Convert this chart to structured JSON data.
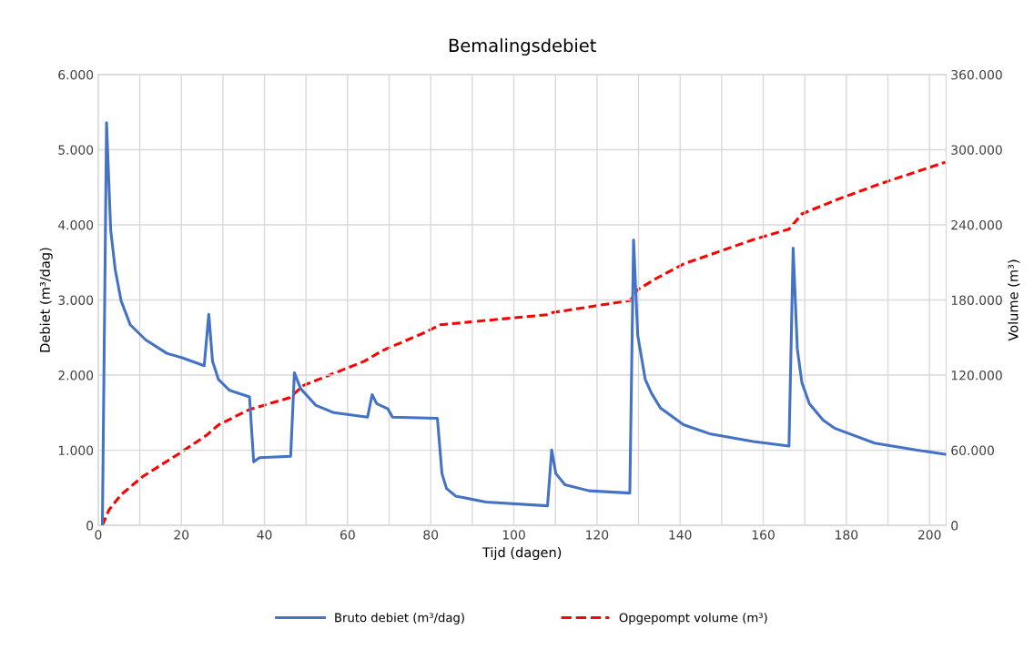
{
  "chart_data": {
    "type": "line",
    "title": "Bemalingsdebiet",
    "xlabel": "Tijd (dagen)",
    "ylabel": "Debiet (m³/dag)",
    "y2label": "Volume (m³)",
    "xlim": [
      0,
      204
    ],
    "xticks": [
      0,
      {
        "value": 10,
        "label": null
      },
      20,
      {
        "value": 30,
        "label": null
      },
      40,
      {
        "value": 50,
        "label": null
      },
      60,
      {
        "value": 70,
        "label": null
      },
      80,
      {
        "value": 90,
        "label": null
      },
      100,
      {
        "value": 110,
        "label": null
      },
      120,
      {
        "value": 130,
        "label": null
      },
      140,
      {
        "value": 150,
        "label": null
      },
      160,
      {
        "value": 170,
        "label": null
      },
      180,
      {
        "value": 190,
        "label": null
      },
      200
    ],
    "ylim": [
      0,
      6000
    ],
    "yticks": [
      0,
      {
        "value": 1000,
        "label": "1.000"
      },
      {
        "value": 2000,
        "label": "2.000"
      },
      {
        "value": 3000,
        "label": "3.000"
      },
      {
        "value": 4000,
        "label": "4.000"
      },
      {
        "value": 5000,
        "label": "5.000"
      },
      {
        "value": 6000,
        "label": "6.000"
      }
    ],
    "y2lim": [
      0,
      360000
    ],
    "y2ticks": [
      0,
      {
        "value": 60000,
        "label": "60.000"
      },
      {
        "value": 120000,
        "label": "120.000"
      },
      {
        "value": 180000,
        "label": "180.000"
      },
      {
        "value": 240000,
        "label": "240.000"
      },
      {
        "value": 300000,
        "label": "300.000"
      },
      {
        "value": 360000,
        "label": "360.000"
      }
    ],
    "grid": true,
    "legend": "bottom",
    "marker": "none",
    "series": [
      {
        "name": "Bruto debiet (m³/dag)",
        "color": "#4472c4",
        "line_style": "solid",
        "x": [
          1.0,
          2.0,
          3.0,
          4.1,
          5.5,
          7.7,
          11.4,
          16.5,
          20.2,
          25.5,
          26.6,
          27.5,
          28.9,
          31.5,
          36.4,
          37.4,
          38.8,
          46.3,
          47.2,
          48.7,
          52.3,
          56.7,
          64.8,
          65.9,
          67.0,
          69.7,
          70.8,
          81.6,
          82.7,
          83.8,
          86.0,
          93.3,
          108.1,
          109.1,
          110.1,
          112.3,
          118.1,
          127.9,
          128.8,
          129.8,
          131.6,
          133.1,
          135.3,
          140.8,
          147.4,
          157.6,
          166.2,
          167.2,
          168.2,
          169.3,
          171.1,
          174.4,
          177.3,
          186.8,
          196.7,
          203.8
        ],
        "values": [
          0,
          5360,
          3930,
          3400,
          2990,
          2670,
          2470,
          2290,
          2230,
          2125,
          2810,
          2185,
          1945,
          1800,
          1710,
          845,
          900,
          920,
          2030,
          1820,
          1600,
          1500,
          1440,
          1740,
          1620,
          1550,
          1440,
          1425,
          690,
          490,
          390,
          310,
          260,
          1005,
          690,
          540,
          460,
          430,
          3800,
          2530,
          1945,
          1760,
          1560,
          1340,
          1215,
          1115,
          1055,
          3690,
          2350,
          1900,
          1620,
          1400,
          1290,
          1095,
          1005,
          945
        ]
      },
      {
        "name": "Opgepompt volume (m³)",
        "color": "#ff0000",
        "line_style": "dashed",
        "axis": "y2",
        "x": [
          1.0,
          2.6,
          5.5,
          10.7,
          19.4,
          26.0,
          28.9,
          36.3,
          46.1,
          49.4,
          64.0,
          68.4,
          78.7,
          82.3,
          107.9,
          109.4,
          128.0,
          129.8,
          134.2,
          140.8,
          157.6,
          166.2,
          169.3,
          177.3,
          188.3,
          203.8
        ],
        "values": [
          0,
          12400,
          24500,
          39000,
          57200,
          71800,
          80200,
          92400,
          102000,
          111800,
          131000,
          139600,
          154200,
          160200,
          168200,
          170000,
          179600,
          188200,
          197100,
          208700,
          228200,
          236600,
          248700,
          259600,
          273000,
          290000
        ]
      }
    ]
  }
}
